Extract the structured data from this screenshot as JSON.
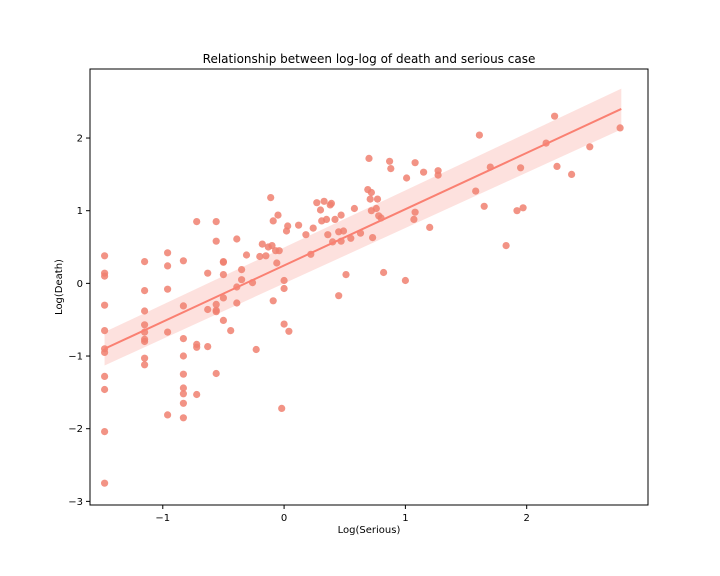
{
  "chart_data": {
    "type": "scatter",
    "title": "Relationship between log-log of death and serious case",
    "xlabel": "Log(Serious)",
    "ylabel": "Log(Death)",
    "xlim": [
      -1.6,
      3.0
    ],
    "ylim": [
      -3.05,
      2.95
    ],
    "xticks": [
      -1,
      0,
      1,
      2
    ],
    "yticks": [
      -3,
      -2,
      -1,
      0,
      1,
      2
    ],
    "xtick_labels": [
      "−1",
      "0",
      "1",
      "2"
    ],
    "ytick_labels": [
      "−3",
      "−2",
      "−1",
      "0",
      "1",
      "2"
    ],
    "grid": false,
    "point_color": "#f08070",
    "line_color": "#fa8072",
    "band_color": "#fddcd8",
    "regression": {
      "x": [
        -1.48,
        2.78
      ],
      "y": [
        -0.9,
        2.4
      ],
      "ci_upper": [
        -0.67,
        2.68
      ],
      "ci_lower": [
        -1.13,
        2.12
      ]
    },
    "series": [
      {
        "points": [
          [
            -1.48,
            0.38
          ],
          [
            -1.48,
            0.14
          ],
          [
            -1.48,
            0.1
          ],
          [
            -1.48,
            -0.3
          ],
          [
            -1.48,
            -0.65
          ],
          [
            -1.48,
            -0.9
          ],
          [
            -1.48,
            -0.95
          ],
          [
            -1.48,
            -1.28
          ],
          [
            -1.48,
            -1.46
          ],
          [
            -1.48,
            -2.04
          ],
          [
            -1.48,
            -2.75
          ],
          [
            -1.15,
            0.3
          ],
          [
            -1.15,
            -0.1
          ],
          [
            -1.15,
            -0.38
          ],
          [
            -1.15,
            -0.57
          ],
          [
            -1.15,
            -0.67
          ],
          [
            -1.15,
            -0.77
          ],
          [
            -1.15,
            -0.8
          ],
          [
            -1.15,
            -1.03
          ],
          [
            -1.15,
            -1.12
          ],
          [
            -0.96,
            0.42
          ],
          [
            -0.96,
            0.24
          ],
          [
            -0.96,
            -0.08
          ],
          [
            -0.96,
            -0.67
          ],
          [
            -0.96,
            -1.81
          ],
          [
            -0.83,
            0.31
          ],
          [
            -0.83,
            -0.31
          ],
          [
            -0.83,
            -0.76
          ],
          [
            -0.83,
            -1.0
          ],
          [
            -0.83,
            -1.25
          ],
          [
            -0.83,
            -1.44
          ],
          [
            -0.83,
            -1.52
          ],
          [
            -0.83,
            -1.65
          ],
          [
            -0.83,
            -1.85
          ],
          [
            -0.72,
            0.85
          ],
          [
            -0.72,
            -0.84
          ],
          [
            -0.72,
            -0.88
          ],
          [
            -0.72,
            -1.53
          ],
          [
            -0.63,
            0.14
          ],
          [
            -0.63,
            -0.36
          ],
          [
            -0.63,
            -0.87
          ],
          [
            -0.56,
            0.85
          ],
          [
            -0.56,
            0.58
          ],
          [
            -0.56,
            -0.29
          ],
          [
            -0.56,
            -0.37
          ],
          [
            -0.56,
            -0.39
          ],
          [
            -0.56,
            -1.24
          ],
          [
            -0.5,
            0.3
          ],
          [
            -0.5,
            0.29
          ],
          [
            -0.5,
            0.12
          ],
          [
            -0.5,
            -0.2
          ],
          [
            -0.5,
            -0.51
          ],
          [
            -0.44,
            -0.65
          ],
          [
            -0.39,
            0.61
          ],
          [
            -0.39,
            -0.05
          ],
          [
            -0.39,
            -0.27
          ],
          [
            -0.35,
            0.19
          ],
          [
            -0.35,
            0.05
          ],
          [
            -0.31,
            0.39
          ],
          [
            -0.26,
            0.01
          ],
          [
            -0.23,
            -0.91
          ],
          [
            -0.2,
            0.37
          ],
          [
            -0.18,
            0.54
          ],
          [
            -0.15,
            0.38
          ],
          [
            -0.13,
            0.5
          ],
          [
            -0.11,
            1.18
          ],
          [
            -0.1,
            0.52
          ],
          [
            -0.09,
            0.86
          ],
          [
            -0.09,
            -0.24
          ],
          [
            -0.07,
            0.45
          ],
          [
            -0.06,
            0.28
          ],
          [
            -0.05,
            0.94
          ],
          [
            -0.04,
            0.45
          ],
          [
            -0.02,
            -1.72
          ],
          [
            0.0,
            0.04
          ],
          [
            0.0,
            -0.07
          ],
          [
            0.0,
            -0.56
          ],
          [
            0.02,
            0.72
          ],
          [
            0.03,
            0.79
          ],
          [
            0.04,
            -0.66
          ],
          [
            0.12,
            0.8
          ],
          [
            0.18,
            0.67
          ],
          [
            0.22,
            0.4
          ],
          [
            0.24,
            0.76
          ],
          [
            0.27,
            1.11
          ],
          [
            0.3,
            1.01
          ],
          [
            0.31,
            0.86
          ],
          [
            0.33,
            1.13
          ],
          [
            0.35,
            0.88
          ],
          [
            0.36,
            0.67
          ],
          [
            0.38,
            1.08
          ],
          [
            0.39,
            1.1
          ],
          [
            0.4,
            0.57
          ],
          [
            0.42,
            0.88
          ],
          [
            0.45,
            0.71
          ],
          [
            0.45,
            -0.17
          ],
          [
            0.47,
            0.94
          ],
          [
            0.47,
            0.58
          ],
          [
            0.49,
            0.72
          ],
          [
            0.51,
            0.12
          ],
          [
            0.55,
            0.62
          ],
          [
            0.58,
            1.03
          ],
          [
            0.63,
            0.69
          ],
          [
            0.69,
            1.29
          ],
          [
            0.7,
            1.72
          ],
          [
            0.71,
            1.16
          ],
          [
            0.72,
            1.0
          ],
          [
            0.72,
            1.25
          ],
          [
            0.73,
            0.63
          ],
          [
            0.76,
            1.03
          ],
          [
            0.77,
            1.16
          ],
          [
            0.78,
            0.93
          ],
          [
            0.8,
            0.9
          ],
          [
            0.82,
            0.15
          ],
          [
            0.87,
            1.68
          ],
          [
            0.88,
            1.58
          ],
          [
            1.0,
            0.04
          ],
          [
            1.01,
            1.45
          ],
          [
            1.07,
            0.88
          ],
          [
            1.08,
            0.98
          ],
          [
            1.08,
            1.66
          ],
          [
            1.15,
            1.53
          ],
          [
            1.2,
            0.77
          ],
          [
            1.27,
            1.55
          ],
          [
            1.27,
            1.49
          ],
          [
            1.58,
            1.27
          ],
          [
            1.61,
            2.04
          ],
          [
            1.65,
            1.06
          ],
          [
            1.7,
            1.6
          ],
          [
            1.83,
            0.52
          ],
          [
            1.92,
            1.0
          ],
          [
            1.95,
            1.59
          ],
          [
            1.97,
            1.04
          ],
          [
            2.16,
            1.93
          ],
          [
            2.23,
            2.3
          ],
          [
            2.25,
            1.61
          ],
          [
            2.37,
            1.5
          ],
          [
            2.52,
            1.88
          ],
          [
            2.77,
            2.14
          ]
        ]
      }
    ]
  }
}
